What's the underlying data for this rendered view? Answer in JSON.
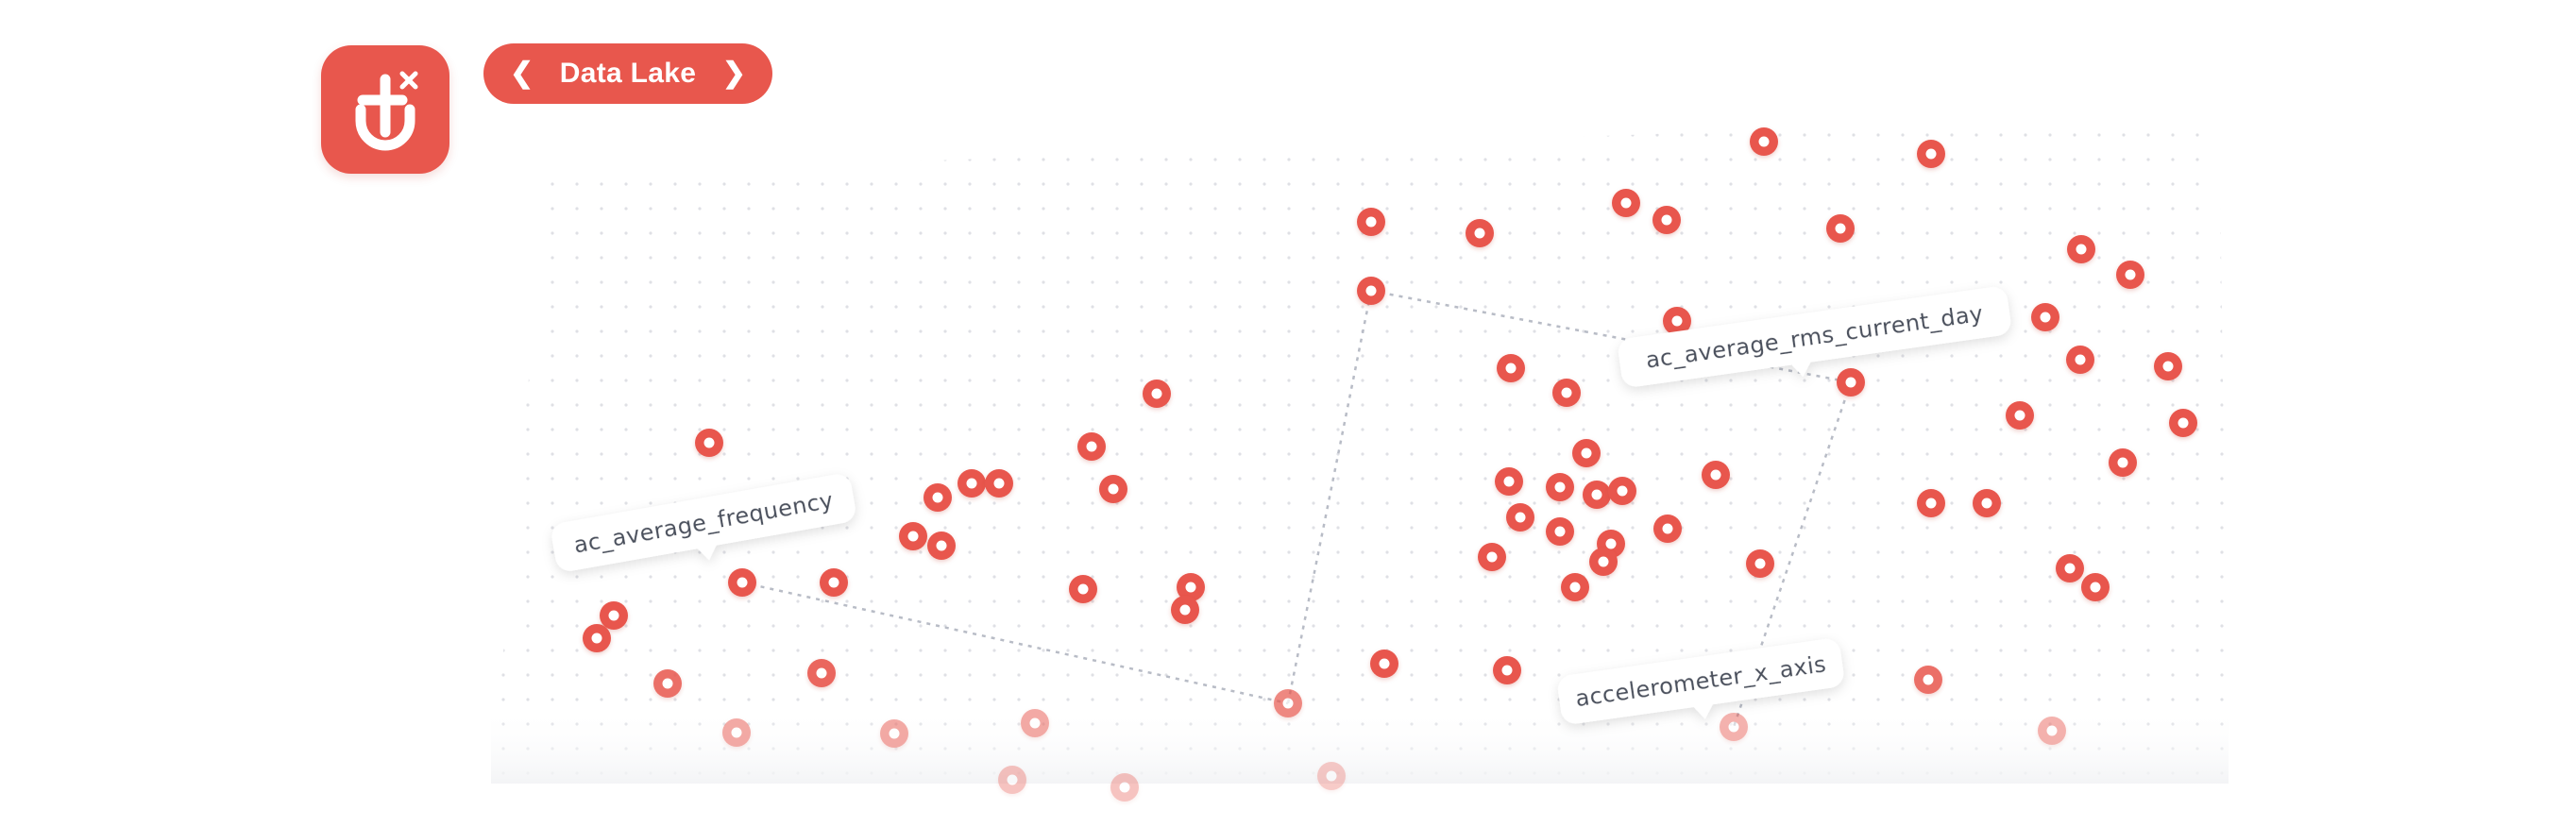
{
  "app": {
    "logo_icon": "plug-connector-icon",
    "accent_color": "#e8574d"
  },
  "breadcrumb": {
    "prev_arrow": "❮",
    "label": "Data Lake",
    "next_arrow": "❯"
  },
  "graph": {
    "node_icon": "data-node-icon",
    "labels": {
      "frequency": "ac_average_frequency",
      "rms_current": "ac_average_rms_current_day",
      "accelerometer": "accelerometer_x_axis"
    }
  }
}
